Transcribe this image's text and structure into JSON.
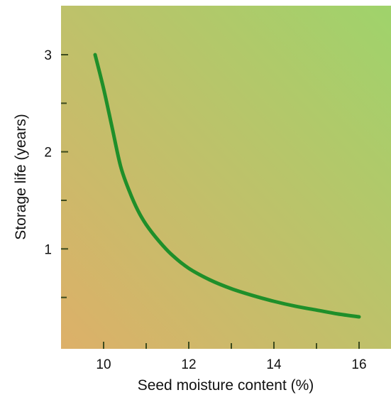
{
  "chart_data": {
    "type": "line",
    "title": "",
    "xlabel": "Seed moisture content (%)",
    "ylabel": "Storage life (years)",
    "xlim": [
      9,
      16.7
    ],
    "ylim": [
      0,
      3.5
    ],
    "x_ticks": [
      10,
      12,
      14,
      16
    ],
    "x_tick_labels": [
      "10",
      "12",
      "14",
      "16"
    ],
    "x_minor_ticks": [
      11,
      13,
      15
    ],
    "y_ticks": [
      1,
      2,
      3
    ],
    "y_tick_labels": [
      "1",
      "2",
      "3"
    ],
    "y_minor_ticks": [
      0.5,
      1.5,
      2.5
    ],
    "grid": false,
    "legend": "none",
    "series": [
      {
        "x": [
          9.8,
          10.0,
          10.2,
          10.4,
          10.6,
          10.8,
          11.0,
          11.3,
          11.6,
          12.0,
          12.5,
          13.0,
          13.5,
          14.0,
          14.5,
          15.0,
          15.5,
          16.0
        ],
        "y": [
          3.0,
          2.65,
          2.25,
          1.85,
          1.6,
          1.4,
          1.25,
          1.08,
          0.94,
          0.8,
          0.68,
          0.59,
          0.52,
          0.46,
          0.41,
          0.37,
          0.33,
          0.3
        ]
      }
    ],
    "colors": {
      "line": "#1f8f2a",
      "background_left_bottom": "#ddb069",
      "background_right_top": "#9fd36b",
      "tick": "#3d4b1e"
    }
  }
}
